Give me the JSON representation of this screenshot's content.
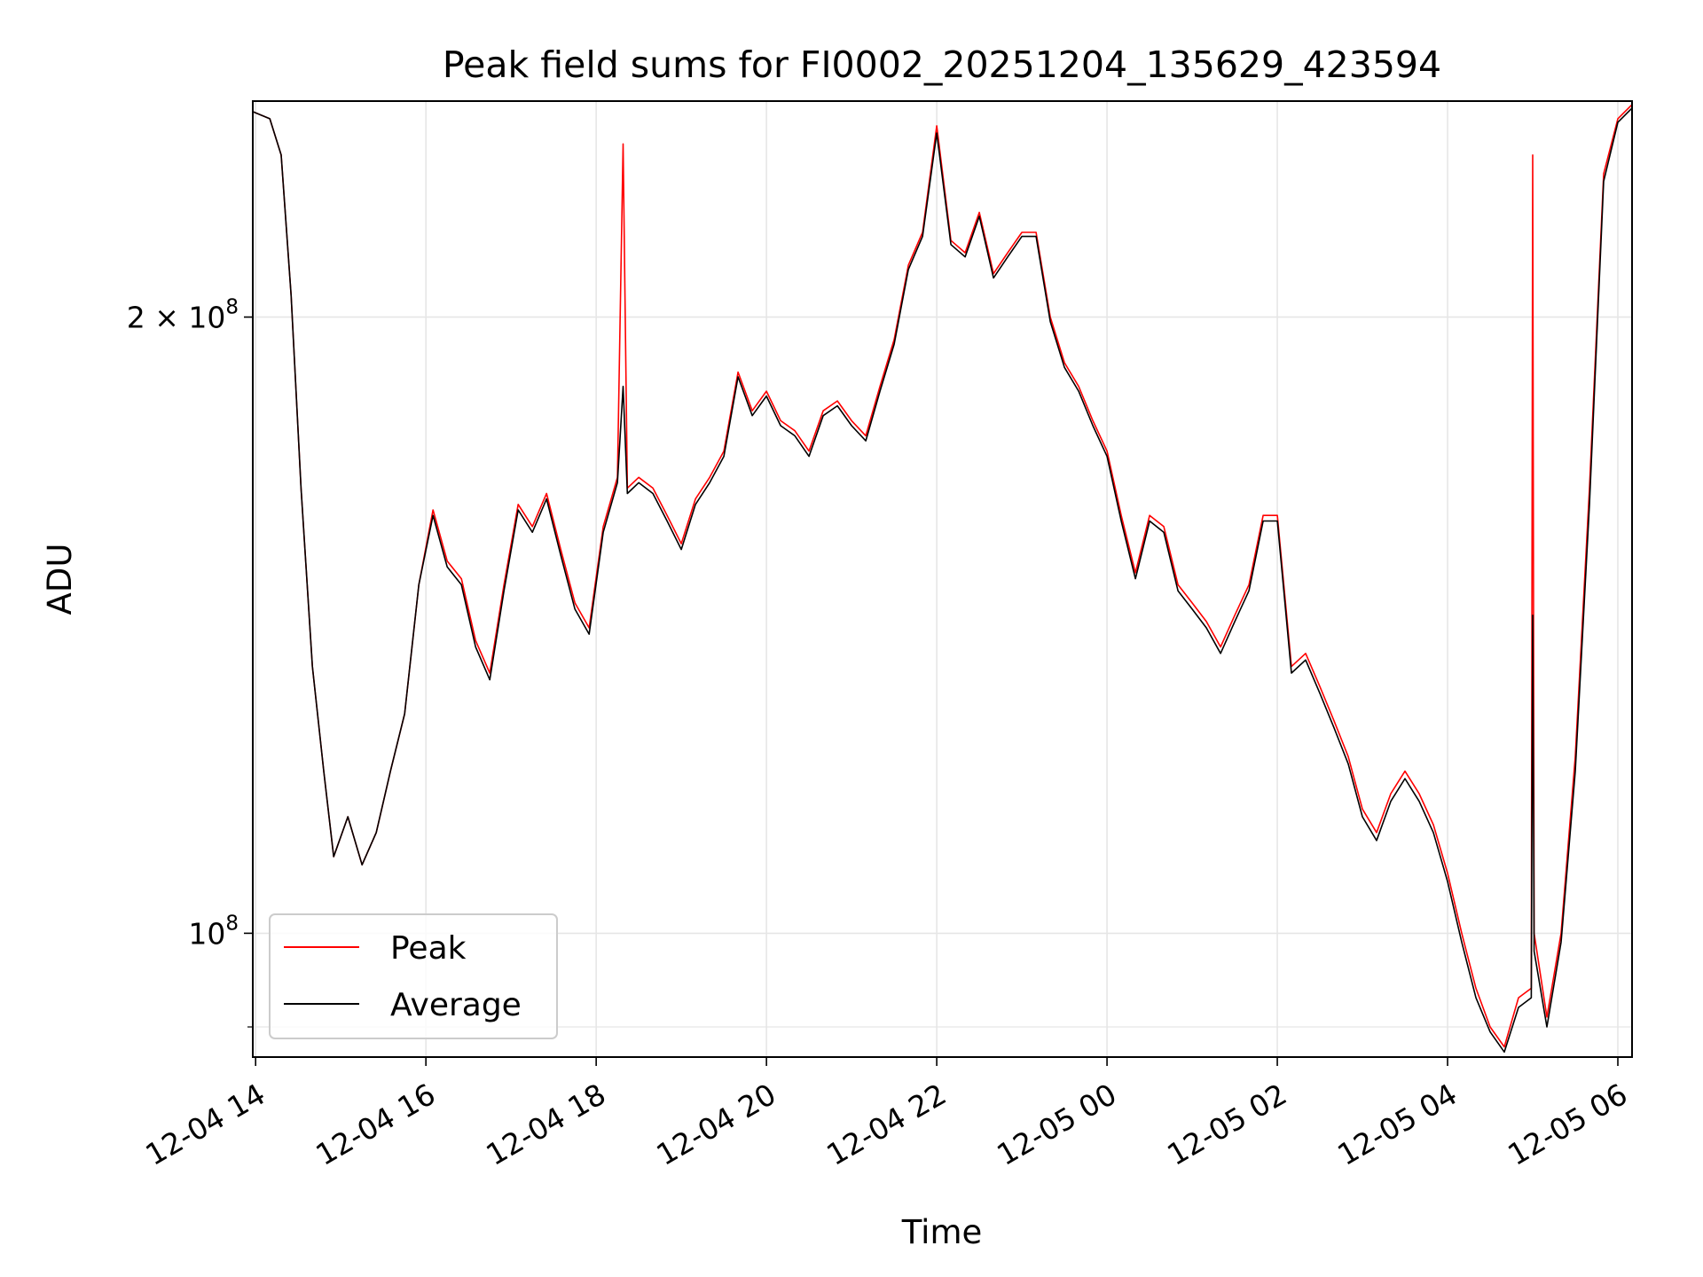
{
  "chart_data": {
    "type": "line",
    "title": "Peak field sums for FI0002_20251204_135629_423594",
    "xlabel": "Time",
    "ylabel": "ADU",
    "x_type": "time",
    "xlim": [
      "2025-12-04 13:58",
      "2025-12-05 06:10"
    ],
    "ylim": [
      87000000,
      255000000
    ],
    "yscale": "log",
    "grid": true,
    "legend_position": "lower-left",
    "x_ticks": [
      "12-04 14",
      "12-04 16",
      "12-04 18",
      "12-04 20",
      "12-04 22",
      "12-05 00",
      "12-05 02",
      "12-05 04",
      "12-05 06"
    ],
    "x_tick_times": [
      "2025-12-04 14:00",
      "2025-12-04 16:00",
      "2025-12-04 18:00",
      "2025-12-04 20:00",
      "2025-12-04 22:00",
      "2025-12-05 00:00",
      "2025-12-05 02:00",
      "2025-12-05 04:00",
      "2025-12-05 06:00"
    ],
    "y_ticks": [
      {
        "value": 200000000,
        "base": "2 × 10",
        "exp": "8"
      },
      {
        "value": 100000000,
        "base": "10",
        "exp": "8"
      }
    ],
    "series": [
      {
        "name": "Peak",
        "color": "#ff0000",
        "points": [
          [
            "2025-12-04 13:58",
            252000000
          ],
          [
            "2025-12-04 14:10",
            250000000
          ],
          [
            "2025-12-04 14:18",
            240000000
          ],
          [
            "2025-12-04 14:25",
            205000000
          ],
          [
            "2025-12-04 14:32",
            165000000
          ],
          [
            "2025-12-04 14:40",
            135000000
          ],
          [
            "2025-12-04 14:48",
            120000000
          ],
          [
            "2025-12-04 14:55",
            109000000
          ],
          [
            "2025-12-04 15:05",
            114000000
          ],
          [
            "2025-12-04 15:15",
            108000000
          ],
          [
            "2025-12-04 15:25",
            112000000
          ],
          [
            "2025-12-04 15:35",
            120000000
          ],
          [
            "2025-12-04 15:45",
            128000000
          ],
          [
            "2025-12-04 15:55",
            148000000
          ],
          [
            "2025-12-04 16:05",
            161000000
          ],
          [
            "2025-12-04 16:15",
            152000000
          ],
          [
            "2025-12-04 16:25",
            149000000
          ],
          [
            "2025-12-04 16:35",
            139000000
          ],
          [
            "2025-12-04 16:45",
            134000000
          ],
          [
            "2025-12-04 16:55",
            148000000
          ],
          [
            "2025-12-04 17:05",
            162000000
          ],
          [
            "2025-12-04 17:15",
            158000000
          ],
          [
            "2025-12-04 17:25",
            164000000
          ],
          [
            "2025-12-04 17:35",
            154000000
          ],
          [
            "2025-12-04 17:45",
            145000000
          ],
          [
            "2025-12-04 17:55",
            141000000
          ],
          [
            "2025-12-04 18:05",
            158000000
          ],
          [
            "2025-12-04 18:15",
            167000000
          ],
          [
            "2025-12-04 18:19",
            243000000
          ],
          [
            "2025-12-04 18:22",
            165000000
          ],
          [
            "2025-12-04 18:30",
            167000000
          ],
          [
            "2025-12-04 18:40",
            165000000
          ],
          [
            "2025-12-04 18:50",
            160000000
          ],
          [
            "2025-12-04 19:00",
            155000000
          ],
          [
            "2025-12-04 19:10",
            163000000
          ],
          [
            "2025-12-04 19:20",
            167000000
          ],
          [
            "2025-12-04 19:30",
            172000000
          ],
          [
            "2025-12-04 19:40",
            188000000
          ],
          [
            "2025-12-04 19:50",
            180000000
          ],
          [
            "2025-12-04 20:00",
            184000000
          ],
          [
            "2025-12-04 20:10",
            178000000
          ],
          [
            "2025-12-04 20:20",
            176000000
          ],
          [
            "2025-12-04 20:30",
            172000000
          ],
          [
            "2025-12-04 20:40",
            180000000
          ],
          [
            "2025-12-04 20:50",
            182000000
          ],
          [
            "2025-12-04 21:00",
            178000000
          ],
          [
            "2025-12-04 21:10",
            175000000
          ],
          [
            "2025-12-04 21:20",
            185000000
          ],
          [
            "2025-12-04 21:30",
            195000000
          ],
          [
            "2025-12-04 21:40",
            212000000
          ],
          [
            "2025-12-04 21:50",
            220000000
          ],
          [
            "2025-12-04 22:00",
            248000000
          ],
          [
            "2025-12-04 22:10",
            218000000
          ],
          [
            "2025-12-04 22:20",
            215000000
          ],
          [
            "2025-12-04 22:30",
            225000000
          ],
          [
            "2025-12-04 22:40",
            210000000
          ],
          [
            "2025-12-04 22:50",
            215000000
          ],
          [
            "2025-12-04 23:00",
            220000000
          ],
          [
            "2025-12-04 23:10",
            220000000
          ],
          [
            "2025-12-04 23:20",
            200000000
          ],
          [
            "2025-12-04 23:30",
            190000000
          ],
          [
            "2025-12-04 23:40",
            185000000
          ],
          [
            "2025-12-04 23:50",
            178000000
          ],
          [
            "2025-12-05 00:00",
            172000000
          ],
          [
            "2025-12-05 00:10",
            160000000
          ],
          [
            "2025-12-05 00:20",
            150000000
          ],
          [
            "2025-12-05 00:30",
            160000000
          ],
          [
            "2025-12-05 00:40",
            158000000
          ],
          [
            "2025-12-05 00:50",
            148000000
          ],
          [
            "2025-12-05 01:00",
            145000000
          ],
          [
            "2025-12-05 01:10",
            142000000
          ],
          [
            "2025-12-05 01:20",
            138000000
          ],
          [
            "2025-12-05 01:30",
            143000000
          ],
          [
            "2025-12-05 01:40",
            148000000
          ],
          [
            "2025-12-05 01:50",
            160000000
          ],
          [
            "2025-12-05 02:00",
            160000000
          ],
          [
            "2025-12-05 02:10",
            135000000
          ],
          [
            "2025-12-05 02:20",
            137000000
          ],
          [
            "2025-12-05 02:30",
            132000000
          ],
          [
            "2025-12-05 02:40",
            127000000
          ],
          [
            "2025-12-05 02:50",
            122000000
          ],
          [
            "2025-12-05 03:00",
            115000000
          ],
          [
            "2025-12-05 03:10",
            112000000
          ],
          [
            "2025-12-05 03:20",
            117000000
          ],
          [
            "2025-12-05 03:30",
            120000000
          ],
          [
            "2025-12-05 03:40",
            117000000
          ],
          [
            "2025-12-05 03:50",
            113000000
          ],
          [
            "2025-12-05 04:00",
            107000000
          ],
          [
            "2025-12-05 04:10",
            100000000
          ],
          [
            "2025-12-05 04:20",
            94000000
          ],
          [
            "2025-12-05 04:30",
            90000000
          ],
          [
            "2025-12-05 04:40",
            88000000
          ],
          [
            "2025-12-05 04:50",
            93000000
          ],
          [
            "2025-12-05 04:59",
            94000000
          ],
          [
            "2025-12-05 05:00",
            240000000
          ],
          [
            "2025-12-05 05:01",
            100000000
          ],
          [
            "2025-12-05 05:10",
            91000000
          ],
          [
            "2025-12-05 05:20",
            100000000
          ],
          [
            "2025-12-05 05:30",
            122000000
          ],
          [
            "2025-12-05 05:40",
            165000000
          ],
          [
            "2025-12-05 05:50",
            235000000
          ],
          [
            "2025-12-05 06:00",
            250000000
          ],
          [
            "2025-12-05 06:10",
            254000000
          ]
        ]
      },
      {
        "name": "Average",
        "color": "#000000",
        "points": [
          [
            "2025-12-04 13:58",
            252000000
          ],
          [
            "2025-12-04 14:10",
            250000000
          ],
          [
            "2025-12-04 14:18",
            240000000
          ],
          [
            "2025-12-04 14:25",
            205000000
          ],
          [
            "2025-12-04 14:32",
            165000000
          ],
          [
            "2025-12-04 14:40",
            135000000
          ],
          [
            "2025-12-04 14:48",
            120000000
          ],
          [
            "2025-12-04 14:55",
            109000000
          ],
          [
            "2025-12-04 15:05",
            114000000
          ],
          [
            "2025-12-04 15:15",
            108000000
          ],
          [
            "2025-12-04 15:25",
            112000000
          ],
          [
            "2025-12-04 15:35",
            120000000
          ],
          [
            "2025-12-04 15:45",
            128000000
          ],
          [
            "2025-12-04 15:55",
            148000000
          ],
          [
            "2025-12-04 16:05",
            160000000
          ],
          [
            "2025-12-04 16:15",
            151000000
          ],
          [
            "2025-12-04 16:25",
            148000000
          ],
          [
            "2025-12-04 16:35",
            138000000
          ],
          [
            "2025-12-04 16:45",
            133000000
          ],
          [
            "2025-12-04 16:55",
            147000000
          ],
          [
            "2025-12-04 17:05",
            161000000
          ],
          [
            "2025-12-04 17:15",
            157000000
          ],
          [
            "2025-12-04 17:25",
            163000000
          ],
          [
            "2025-12-04 17:35",
            153000000
          ],
          [
            "2025-12-04 17:45",
            144000000
          ],
          [
            "2025-12-04 17:55",
            140000000
          ],
          [
            "2025-12-04 18:05",
            157000000
          ],
          [
            "2025-12-04 18:15",
            166000000
          ],
          [
            "2025-12-04 18:19",
            185000000
          ],
          [
            "2025-12-04 18:22",
            164000000
          ],
          [
            "2025-12-04 18:30",
            166000000
          ],
          [
            "2025-12-04 18:40",
            164000000
          ],
          [
            "2025-12-04 18:50",
            159000000
          ],
          [
            "2025-12-04 19:00",
            154000000
          ],
          [
            "2025-12-04 19:10",
            162000000
          ],
          [
            "2025-12-04 19:20",
            166000000
          ],
          [
            "2025-12-04 19:30",
            171000000
          ],
          [
            "2025-12-04 19:40",
            187000000
          ],
          [
            "2025-12-04 19:50",
            179000000
          ],
          [
            "2025-12-04 20:00",
            183000000
          ],
          [
            "2025-12-04 20:10",
            177000000
          ],
          [
            "2025-12-04 20:20",
            175000000
          ],
          [
            "2025-12-04 20:30",
            171000000
          ],
          [
            "2025-12-04 20:40",
            179000000
          ],
          [
            "2025-12-04 20:50",
            181000000
          ],
          [
            "2025-12-04 21:00",
            177000000
          ],
          [
            "2025-12-04 21:10",
            174000000
          ],
          [
            "2025-12-04 21:20",
            184000000
          ],
          [
            "2025-12-04 21:30",
            194000000
          ],
          [
            "2025-12-04 21:40",
            211000000
          ],
          [
            "2025-12-04 21:50",
            219000000
          ],
          [
            "2025-12-04 22:00",
            246000000
          ],
          [
            "2025-12-04 22:10",
            217000000
          ],
          [
            "2025-12-04 22:20",
            214000000
          ],
          [
            "2025-12-04 22:30",
            224000000
          ],
          [
            "2025-12-04 22:40",
            209000000
          ],
          [
            "2025-12-04 22:50",
            214000000
          ],
          [
            "2025-12-04 23:00",
            219000000
          ],
          [
            "2025-12-04 23:10",
            219000000
          ],
          [
            "2025-12-04 23:20",
            199000000
          ],
          [
            "2025-12-04 23:30",
            189000000
          ],
          [
            "2025-12-04 23:40",
            184000000
          ],
          [
            "2025-12-04 23:50",
            177000000
          ],
          [
            "2025-12-05 00:00",
            171000000
          ],
          [
            "2025-12-05 00:10",
            159000000
          ],
          [
            "2025-12-05 00:20",
            149000000
          ],
          [
            "2025-12-05 00:30",
            159000000
          ],
          [
            "2025-12-05 00:40",
            157000000
          ],
          [
            "2025-12-05 00:50",
            147000000
          ],
          [
            "2025-12-05 01:00",
            144000000
          ],
          [
            "2025-12-05 01:10",
            141000000
          ],
          [
            "2025-12-05 01:20",
            137000000
          ],
          [
            "2025-12-05 01:30",
            142000000
          ],
          [
            "2025-12-05 01:40",
            147000000
          ],
          [
            "2025-12-05 01:50",
            159000000
          ],
          [
            "2025-12-05 02:00",
            159000000
          ],
          [
            "2025-12-05 02:10",
            134000000
          ],
          [
            "2025-12-05 02:20",
            136000000
          ],
          [
            "2025-12-05 02:30",
            131000000
          ],
          [
            "2025-12-05 02:40",
            126000000
          ],
          [
            "2025-12-05 02:50",
            121000000
          ],
          [
            "2025-12-05 03:00",
            114000000
          ],
          [
            "2025-12-05 03:10",
            111000000
          ],
          [
            "2025-12-05 03:20",
            116000000
          ],
          [
            "2025-12-05 03:30",
            119000000
          ],
          [
            "2025-12-05 03:40",
            116000000
          ],
          [
            "2025-12-05 03:50",
            112000000
          ],
          [
            "2025-12-05 04:00",
            106000000
          ],
          [
            "2025-12-05 04:10",
            99000000
          ],
          [
            "2025-12-05 04:20",
            93000000
          ],
          [
            "2025-12-05 04:30",
            89500000
          ],
          [
            "2025-12-05 04:40",
            87500000
          ],
          [
            "2025-12-05 04:50",
            92000000
          ],
          [
            "2025-12-05 04:59",
            93000000
          ],
          [
            "2025-12-05 05:00",
            143000000
          ],
          [
            "2025-12-05 05:01",
            98000000
          ],
          [
            "2025-12-05 05:10",
            90000000
          ],
          [
            "2025-12-05 05:20",
            99000000
          ],
          [
            "2025-12-05 05:30",
            120000000
          ],
          [
            "2025-12-05 05:40",
            162000000
          ],
          [
            "2025-12-05 05:50",
            233000000
          ],
          [
            "2025-12-05 06:00",
            249000000
          ],
          [
            "2025-12-05 06:10",
            253000000
          ]
        ]
      }
    ]
  }
}
